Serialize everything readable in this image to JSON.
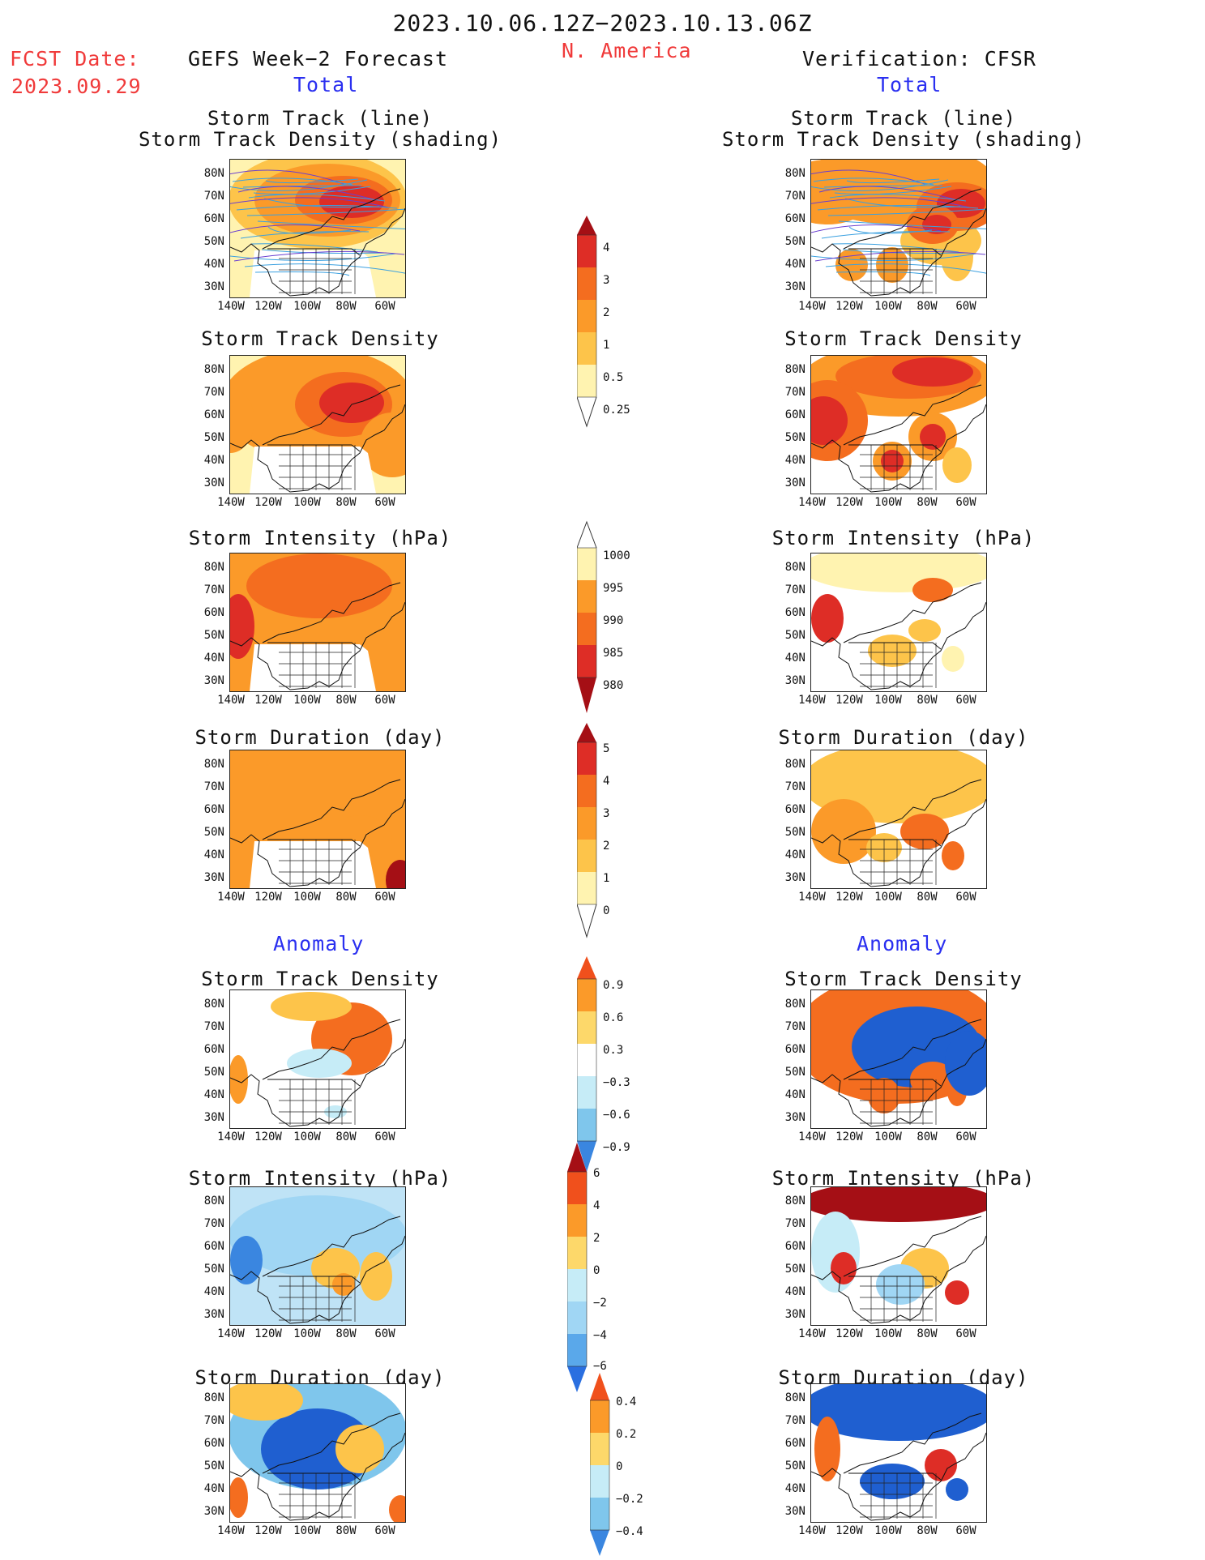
{
  "header": {
    "period": "2023.10.06.12Z−2023.10.13.06Z",
    "region": "N. America",
    "fcst_date_label": "FCST Date:",
    "fcst_date": "2023.09.29",
    "left_title": "GEFS Week−2 Forecast",
    "right_title": "Verification: CFSR",
    "left_total": "Total",
    "right_total": "Total",
    "left_anomaly": "Anomaly",
    "right_anomaly": "Anomaly"
  },
  "panel_titles": {
    "track_line": "Storm Track (line)",
    "track_density_shading": "Storm Track Density (shading)",
    "track_density": "Storm Track Density",
    "intensity": "Storm Intensity (hPa)",
    "duration": "Storm Duration (day)"
  },
  "axis": {
    "lat_labels": [
      "80N",
      "70N",
      "60N",
      "50N",
      "40N",
      "30N"
    ],
    "lon_labels": [
      "140W",
      "120W",
      "100W",
      "80W",
      "60W"
    ]
  },
  "colorbars": {
    "track_density": [
      "4",
      "3",
      "2",
      "1",
      "0.5",
      "0.25"
    ],
    "intensity": [
      "1000",
      "995",
      "990",
      "985",
      "980"
    ],
    "duration": [
      "5",
      "4",
      "3",
      "2",
      "1",
      "0"
    ],
    "anom_density": [
      "0.9",
      "0.6",
      "0.3",
      "−0.3",
      "−0.6",
      "−0.9"
    ],
    "anom_intensity": [
      "6",
      "4",
      "2",
      "0",
      "−2",
      "−4",
      "−6"
    ],
    "anom_duration": [
      "0.4",
      "0.2",
      "0",
      "−0.2",
      "−0.4"
    ]
  },
  "colors": {
    "title_red": "#f03a3a",
    "title_blue": "#2a2ff0",
    "dark_red": "#a50f15",
    "red": "#de2d26",
    "orange_red": "#f46d1f",
    "orange": "#fb9a29",
    "light_orange": "#fdc44a",
    "pale_yellow": "#fff3b0",
    "light_blue": "#c6ecf7",
    "mid_blue": "#7fc6ec",
    "blue": "#3a86e0",
    "deep_blue": "#1f5fd0",
    "track_line": "#3aa0e0"
  }
}
